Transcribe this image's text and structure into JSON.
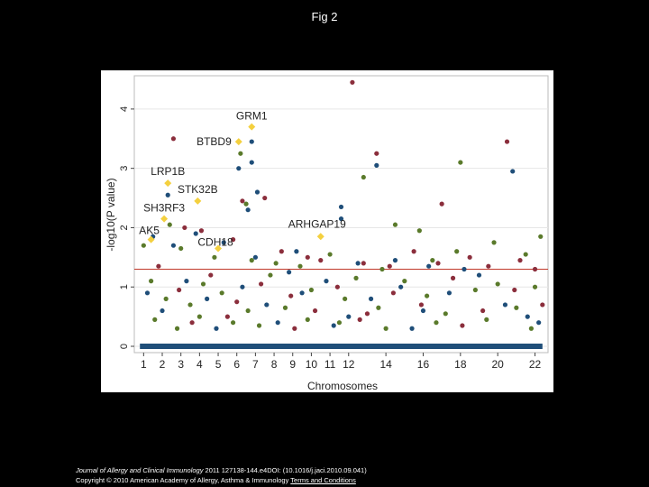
{
  "page": {
    "title": "Fig 2"
  },
  "citation": {
    "journal": "Journal of Allergy and Clinical Immunology",
    "details": " 2011 127138-144.e4DOI: (10.1016/j.jaci.2010.09.041)",
    "copyright": "Copyright © 2010 American Academy of Allergy, Asthma & Immunology",
    "link": "Terms and Conditions"
  },
  "colors": {
    "background": "#000000",
    "panel": "#ffffff",
    "blue": "#1f4e79",
    "green": "#5a7a2b",
    "maroon": "#8b2e3c",
    "gold": "#f4d03f",
    "threshold": "#c0392b"
  },
  "chart_data": {
    "type": "scatter",
    "subtype": "manhattan",
    "xlabel": "Chromosomes",
    "ylabel": "-log10(P value)",
    "ylim": [
      0,
      4.5
    ],
    "yticks": [
      0,
      1,
      2,
      3,
      4
    ],
    "xlim": [
      0.5,
      22.7
    ],
    "xtick_labels": [
      "1",
      "2",
      "3",
      "4",
      "5",
      "6",
      "7",
      "8",
      "9",
      "10",
      "11",
      "12",
      "14",
      "16",
      "18",
      "20",
      "22"
    ],
    "xtick_positions": [
      1,
      2,
      3,
      4,
      5,
      6,
      7,
      8,
      9,
      10,
      11,
      12,
      14,
      16,
      18,
      20,
      22
    ],
    "threshold": 1.3,
    "grid": true,
    "labeled_genes": [
      {
        "gene": "GRM1",
        "x": 6.8,
        "y": 3.7
      },
      {
        "gene": "BTBD9",
        "x": 6.1,
        "y": 3.45
      },
      {
        "gene": "LRP1B",
        "x": 2.3,
        "y": 2.75
      },
      {
        "gene": "STK32B",
        "x": 3.9,
        "y": 2.45
      },
      {
        "gene": "SH3RF3",
        "x": 2.1,
        "y": 2.15
      },
      {
        "gene": "AK5",
        "x": 1.4,
        "y": 1.8
      },
      {
        "gene": "CDH18",
        "x": 5.0,
        "y": 1.65
      },
      {
        "gene": "ARHGAP19",
        "x": 10.5,
        "y": 1.85
      }
    ],
    "series": [
      {
        "color": "blue",
        "points": [
          [
            2.3,
            2.55
          ],
          [
            6.8,
            3.45
          ],
          [
            6.8,
            3.1
          ],
          [
            6.6,
            2.3
          ],
          [
            7.1,
            2.6
          ],
          [
            11.6,
            2.35
          ],
          [
            11.6,
            2.15
          ],
          [
            13.5,
            3.05
          ],
          [
            20.8,
            2.95
          ],
          [
            1.5,
            1.85
          ],
          [
            2.6,
            1.7
          ],
          [
            3.8,
            1.9
          ],
          [
            5.3,
            1.75
          ],
          [
            6.1,
            3.0
          ],
          [
            7.0,
            1.5
          ],
          [
            12.5,
            1.4
          ],
          [
            14.5,
            1.45
          ],
          [
            16.3,
            1.35
          ],
          [
            18.2,
            1.3
          ],
          [
            9.2,
            1.6
          ],
          [
            8.8,
            1.25
          ],
          [
            1.2,
            0.9
          ],
          [
            2.0,
            0.6
          ],
          [
            3.3,
            1.1
          ],
          [
            4.4,
            0.8
          ],
          [
            6.3,
            1.0
          ],
          [
            7.6,
            0.7
          ],
          [
            9.5,
            0.9
          ],
          [
            10.8,
            1.1
          ],
          [
            12.0,
            0.5
          ],
          [
            13.2,
            0.8
          ],
          [
            14.8,
            1.0
          ],
          [
            16.0,
            0.6
          ],
          [
            17.4,
            0.9
          ],
          [
            19.0,
            1.2
          ],
          [
            20.4,
            0.7
          ],
          [
            21.6,
            0.5
          ],
          [
            4.9,
            0.3
          ],
          [
            8.2,
            0.4
          ],
          [
            11.2,
            0.35
          ],
          [
            15.4,
            0.3
          ],
          [
            22.2,
            0.4
          ]
        ]
      },
      {
        "color": "maroon",
        "points": [
          [
            12.2,
            4.45
          ],
          [
            2.6,
            3.5
          ],
          [
            20.5,
            3.45
          ],
          [
            13.5,
            3.25
          ],
          [
            7.5,
            2.5
          ],
          [
            17.0,
            2.4
          ],
          [
            6.3,
            2.45
          ],
          [
            3.2,
            2.0
          ],
          [
            4.1,
            1.95
          ],
          [
            5.8,
            1.8
          ],
          [
            8.4,
            1.6
          ],
          [
            9.8,
            1.5
          ],
          [
            10.5,
            1.45
          ],
          [
            12.8,
            1.4
          ],
          [
            14.2,
            1.35
          ],
          [
            15.5,
            1.6
          ],
          [
            16.8,
            1.4
          ],
          [
            18.5,
            1.5
          ],
          [
            19.5,
            1.35
          ],
          [
            21.2,
            1.45
          ],
          [
            22.0,
            1.3
          ],
          [
            1.8,
            1.35
          ],
          [
            2.9,
            0.95
          ],
          [
            4.6,
            1.2
          ],
          [
            6.0,
            0.75
          ],
          [
            7.3,
            1.05
          ],
          [
            8.9,
            0.85
          ],
          [
            10.2,
            0.6
          ],
          [
            11.4,
            1.0
          ],
          [
            13.0,
            0.55
          ],
          [
            14.4,
            0.9
          ],
          [
            15.9,
            0.7
          ],
          [
            17.6,
            1.15
          ],
          [
            19.2,
            0.6
          ],
          [
            20.9,
            0.95
          ],
          [
            22.4,
            0.7
          ],
          [
            3.6,
            0.4
          ],
          [
            5.5,
            0.5
          ],
          [
            9.1,
            0.3
          ],
          [
            12.6,
            0.45
          ],
          [
            18.1,
            0.35
          ]
        ]
      },
      {
        "color": "green",
        "points": [
          [
            12.8,
            2.85
          ],
          [
            18.0,
            3.1
          ],
          [
            6.2,
            3.25
          ],
          [
            2.4,
            2.05
          ],
          [
            6.5,
            2.4
          ],
          [
            14.5,
            2.05
          ],
          [
            15.8,
            1.95
          ],
          [
            22.3,
            1.85
          ],
          [
            1.0,
            1.7
          ],
          [
            3.0,
            1.65
          ],
          [
            4.8,
            1.5
          ],
          [
            6.8,
            1.45
          ],
          [
            8.1,
            1.4
          ],
          [
            9.4,
            1.35
          ],
          [
            11.0,
            1.55
          ],
          [
            13.8,
            1.3
          ],
          [
            16.5,
            1.45
          ],
          [
            17.8,
            1.6
          ],
          [
            19.8,
            1.75
          ],
          [
            21.5,
            1.55
          ],
          [
            1.4,
            1.1
          ],
          [
            2.2,
            0.8
          ],
          [
            3.5,
            0.7
          ],
          [
            4.2,
            1.05
          ],
          [
            5.2,
            0.9
          ],
          [
            6.6,
            0.6
          ],
          [
            7.8,
            1.2
          ],
          [
            8.6,
            0.65
          ],
          [
            10.0,
            0.95
          ],
          [
            11.8,
            0.8
          ],
          [
            12.4,
            1.15
          ],
          [
            13.6,
            0.65
          ],
          [
            15.0,
            1.1
          ],
          [
            16.2,
            0.85
          ],
          [
            17.2,
            0.55
          ],
          [
            18.8,
            0.95
          ],
          [
            20.0,
            1.05
          ],
          [
            21.0,
            0.65
          ],
          [
            22.0,
            1.0
          ],
          [
            1.6,
            0.45
          ],
          [
            2.8,
            0.3
          ],
          [
            4.0,
            0.5
          ],
          [
            5.8,
            0.4
          ],
          [
            7.2,
            0.35
          ],
          [
            9.8,
            0.45
          ],
          [
            11.5,
            0.4
          ],
          [
            14.0,
            0.3
          ],
          [
            16.7,
            0.4
          ],
          [
            19.4,
            0.45
          ],
          [
            21.8,
            0.3
          ]
        ]
      },
      {
        "color": "gold",
        "points": [
          [
            6.8,
            3.7
          ],
          [
            6.1,
            3.45
          ],
          [
            2.3,
            2.75
          ],
          [
            3.9,
            2.45
          ],
          [
            2.1,
            2.15
          ],
          [
            1.4,
            1.8
          ],
          [
            5.0,
            1.65
          ],
          [
            10.5,
            1.85
          ]
        ]
      }
    ]
  }
}
